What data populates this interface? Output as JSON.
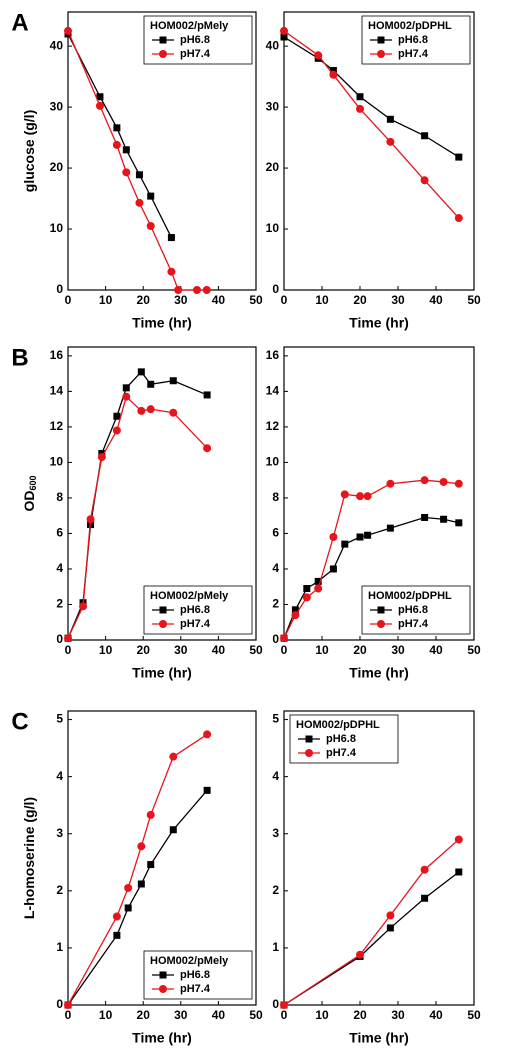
{
  "chart_data": [
    {
      "type": "line",
      "panel_label": "A",
      "y_label": "glucose (g/l)",
      "x_label": "Time (hr)",
      "legend_title": "HOM002/pMely",
      "legend": "upper right",
      "xlim": [
        0,
        50
      ],
      "xticks": [
        0,
        10,
        20,
        30,
        40,
        50
      ],
      "ylim": [
        0,
        45.6
      ],
      "yticks": [
        0,
        10,
        20,
        30,
        40
      ],
      "series": [
        {
          "name": "pH6.8",
          "color": "#000000",
          "marker": "square",
          "x": [
            0,
            8.5,
            13,
            15.5,
            19,
            22,
            27.5
          ],
          "values": [
            42,
            31.7,
            26.6,
            23,
            18.9,
            15.4,
            8.6
          ]
        },
        {
          "name": "pH7.4",
          "color": "#e8141c",
          "marker": "circle",
          "x": [
            0,
            8.5,
            13,
            15.5,
            19,
            22,
            27.5,
            29.3,
            34.3,
            36.9
          ],
          "values": [
            42.5,
            30.2,
            23.8,
            19.3,
            14.3,
            10.5,
            3,
            0,
            0,
            0
          ]
        }
      ]
    },
    {
      "type": "line",
      "x_label": "Time (hr)",
      "legend_title": "HOM002/pDPHL",
      "legend": "upper right",
      "xlim": [
        0,
        50
      ],
      "xticks": [
        0,
        10,
        20,
        30,
        40,
        50
      ],
      "ylim": [
        0,
        45.6
      ],
      "yticks": [
        0,
        10,
        20,
        30,
        40
      ],
      "series": [
        {
          "name": "pH6.8",
          "color": "#000000",
          "marker": "square",
          "x": [
            0,
            9,
            13,
            20,
            28,
            37,
            46
          ],
          "values": [
            41.5,
            38,
            36,
            31.7,
            28,
            25.3,
            21.8
          ]
        },
        {
          "name": "pH7.4",
          "color": "#e8141c",
          "marker": "circle",
          "x": [
            0,
            9,
            13,
            20,
            28,
            37,
            46
          ],
          "values": [
            42.5,
            38.5,
            35.3,
            29.7,
            24.3,
            18,
            11.8
          ]
        }
      ]
    },
    {
      "type": "line",
      "panel_label": "B",
      "y_label": "OD",
      "y_label_subscript": "600",
      "x_label": "Time (hr)",
      "legend_title": "HOM002/pMely",
      "legend": "lower right",
      "xlim": [
        0,
        50
      ],
      "xticks": [
        0,
        10,
        20,
        30,
        40,
        50
      ],
      "ylim": [
        0,
        16.5
      ],
      "yticks": [
        0,
        2,
        4,
        6,
        8,
        10,
        12,
        14,
        16
      ],
      "series": [
        {
          "name": "pH6.8",
          "color": "#000000",
          "marker": "square",
          "x": [
            0,
            4,
            6,
            9,
            13,
            15.5,
            19.5,
            22,
            28,
            37
          ],
          "values": [
            0.1,
            2.1,
            6.5,
            10.5,
            12.6,
            14.2,
            15.1,
            14.4,
            14.6,
            13.8
          ]
        },
        {
          "name": "pH7.4",
          "color": "#e8141c",
          "marker": "circle",
          "x": [
            0,
            4,
            6,
            9,
            13,
            15.5,
            19.5,
            22,
            28,
            37
          ],
          "values": [
            0.1,
            1.9,
            6.8,
            10.3,
            11.8,
            13.7,
            12.9,
            13,
            12.8,
            10.8
          ]
        }
      ]
    },
    {
      "type": "line",
      "x_label": "Time (hr)",
      "legend_title": "HOM002/pDPHL",
      "legend": "lower right",
      "xlim": [
        0,
        50
      ],
      "xticks": [
        0,
        10,
        20,
        30,
        40,
        50
      ],
      "ylim": [
        0,
        16.5
      ],
      "yticks": [
        0,
        2,
        4,
        6,
        8,
        10,
        12,
        14,
        16
      ],
      "series": [
        {
          "name": "pH6.8",
          "color": "#000000",
          "marker": "square",
          "x": [
            0,
            3,
            6,
            9,
            13,
            16,
            20,
            22,
            28,
            37,
            42,
            46
          ],
          "values": [
            0.1,
            1.7,
            2.9,
            3.3,
            4,
            5.4,
            5.8,
            5.9,
            6.3,
            6.9,
            6.8,
            6.6
          ]
        },
        {
          "name": "pH7.4",
          "color": "#e8141c",
          "marker": "circle",
          "x": [
            0,
            3,
            6,
            9,
            13,
            16,
            20,
            22,
            28,
            37,
            42,
            46
          ],
          "values": [
            0.1,
            1.4,
            2.4,
            2.9,
            5.8,
            8.2,
            8.1,
            8.1,
            8.8,
            9,
            8.9,
            8.8
          ]
        }
      ]
    },
    {
      "type": "line",
      "panel_label": "C",
      "y_label": "L-homoserine (g/l)",
      "x_label": "Time (hr)",
      "legend_title": "HOM002/pMely",
      "legend": "lower right",
      "xlim": [
        0,
        50
      ],
      "xticks": [
        0,
        10,
        20,
        30,
        40,
        50
      ],
      "ylim": [
        0,
        5.15
      ],
      "yticks": [
        0,
        1,
        2,
        3,
        4,
        5
      ],
      "series": [
        {
          "name": "pH6.8",
          "color": "#000000",
          "marker": "square",
          "x": [
            0,
            13,
            16,
            19.5,
            22,
            28,
            37
          ],
          "values": [
            0,
            1.22,
            1.7,
            2.12,
            2.46,
            3.07,
            3.76
          ]
        },
        {
          "name": "pH7.4",
          "color": "#e8141c",
          "marker": "circle",
          "x": [
            0,
            13,
            16,
            19.5,
            22,
            28,
            37
          ],
          "values": [
            0,
            1.55,
            2.05,
            2.78,
            3.33,
            4.35,
            4.74
          ]
        }
      ]
    },
    {
      "type": "line",
      "x_label": "Time (hr)",
      "legend_title": "HOM002/pDPHL",
      "legend": "upper left",
      "xlim": [
        0,
        50
      ],
      "xticks": [
        0,
        10,
        20,
        30,
        40,
        50
      ],
      "ylim": [
        0,
        5.15
      ],
      "yticks": [
        0,
        1,
        2,
        3,
        4,
        5
      ],
      "series": [
        {
          "name": "pH6.8",
          "color": "#000000",
          "marker": "square",
          "x": [
            0,
            20,
            28,
            37,
            46
          ],
          "values": [
            0,
            0.85,
            1.35,
            1.87,
            2.33
          ]
        },
        {
          "name": "pH7.4",
          "color": "#e8141c",
          "marker": "circle",
          "x": [
            0,
            20,
            28,
            37,
            46
          ],
          "values": [
            0,
            0.88,
            1.57,
            2.37,
            2.9
          ]
        }
      ]
    }
  ]
}
